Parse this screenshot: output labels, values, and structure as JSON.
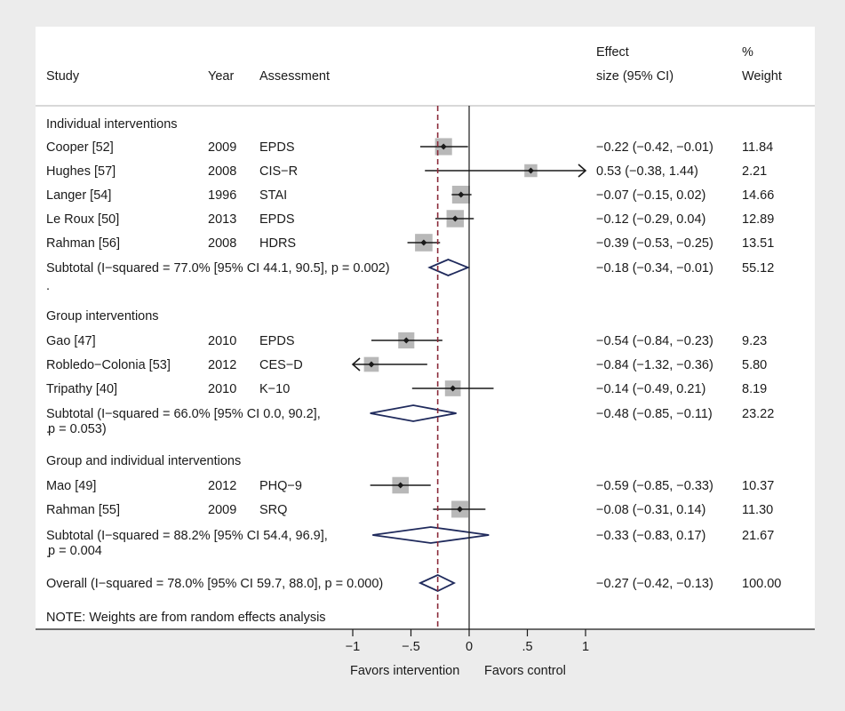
{
  "chart_data": {
    "type": "forest",
    "headers": {
      "study": "Study",
      "year": "Year",
      "assessment": "Assessment",
      "effect_line1": "Effect",
      "effect_line2": "size (95% CI)",
      "weight_line1": "%",
      "weight_line2": "Weight"
    },
    "xlim": [
      -1,
      1
    ],
    "xticks": [
      {
        "value": -1,
        "label": "−1"
      },
      {
        "value": -0.5,
        "label": "−.5"
      },
      {
        "value": 0,
        "label": "0"
      },
      {
        "value": 0.5,
        "label": ".5"
      },
      {
        "value": 1,
        "label": "1"
      }
    ],
    "null_line": 0,
    "overall_line": -0.27,
    "xlabel_left": "Favors intervention",
    "xlabel_right": "Favors control",
    "note": "NOTE: Weights are from random effects analysis",
    "rows": [
      {
        "kind": "group",
        "label": "Individual interventions"
      },
      {
        "kind": "study",
        "study": "Cooper [52]",
        "year": "2009",
        "assessment": "EPDS",
        "es": -0.22,
        "lo": -0.42,
        "hi": -0.01,
        "ci": "−0.22 (−0.42, −0.01)",
        "weight": "11.84",
        "w": 11.84
      },
      {
        "kind": "study",
        "study": "Hughes [57]",
        "year": "2008",
        "assessment": "CIS−R",
        "es": 0.53,
        "lo": -0.38,
        "hi": 1.44,
        "ci": "0.53 (−0.38, 1.44)",
        "weight": "2.21",
        "w": 2.21
      },
      {
        "kind": "study",
        "study": "Langer [54]",
        "year": "1996",
        "assessment": "STAI",
        "es": -0.07,
        "lo": -0.15,
        "hi": 0.02,
        "ci": "−0.07 (−0.15, 0.02)",
        "weight": "14.66",
        "w": 14.66
      },
      {
        "kind": "study",
        "study": "Le Roux [50]",
        "year": "2013",
        "assessment": "EPDS",
        "es": -0.12,
        "lo": -0.29,
        "hi": 0.04,
        "ci": "−0.12 (−0.29, 0.04)",
        "weight": "12.89",
        "w": 12.89
      },
      {
        "kind": "study",
        "study": "Rahman [56]",
        "year": "2008",
        "assessment": "HDRS",
        "es": -0.39,
        "lo": -0.53,
        "hi": -0.25,
        "ci": "−0.39 (−0.53, −0.25)",
        "weight": "13.51",
        "w": 13.51
      },
      {
        "kind": "subtotal",
        "label_lines": [
          "Subtotal (I−squared = 77.0% [95% CI 44.1, 90.5], p = 0.002)"
        ],
        "es": -0.18,
        "lo": -0.34,
        "hi": -0.01,
        "ci": "−0.18 (−0.34, −0.01)",
        "weight": "55.12"
      },
      {
        "kind": "spacer",
        "label": "."
      },
      {
        "kind": "group",
        "label": "Group interventions"
      },
      {
        "kind": "study",
        "study": "Gao [47]",
        "year": "2010",
        "assessment": "EPDS",
        "es": -0.54,
        "lo": -0.84,
        "hi": -0.23,
        "ci": "−0.54 (−0.84, −0.23)",
        "weight": "9.23",
        "w": 9.23
      },
      {
        "kind": "study",
        "study": "Robledo−Colonia [53]",
        "year": "2012",
        "assessment": "CES−D",
        "es": -0.84,
        "lo": -1.32,
        "hi": -0.36,
        "ci": "−0.84 (−1.32, −0.36)",
        "weight": "5.80",
        "w": 5.8
      },
      {
        "kind": "study",
        "study": "Tripathy [40]",
        "year": "2010",
        "assessment": "K−10",
        "es": -0.14,
        "lo": -0.49,
        "hi": 0.21,
        "ci": "−0.14 (−0.49, 0.21)",
        "weight": "8.19",
        "w": 8.19
      },
      {
        "kind": "subtotal",
        "label_lines": [
          "Subtotal (I−squared = 66.0% [95% CI 0.0, 90.2],",
          "p = 0.053)"
        ],
        "es": -0.48,
        "lo": -0.85,
        "hi": -0.11,
        "ci": "−0.48 (−0.85, −0.11)",
        "weight": "23.22"
      },
      {
        "kind": "spacer",
        "label": "."
      },
      {
        "kind": "group",
        "label": "Group and individual interventions"
      },
      {
        "kind": "study",
        "study": "Mao [49]",
        "year": "2012",
        "assessment": "PHQ−9",
        "es": -0.59,
        "lo": -0.85,
        "hi": -0.33,
        "ci": "−0.59 (−0.85, −0.33)",
        "weight": "10.37",
        "w": 10.37
      },
      {
        "kind": "study",
        "study": "Rahman [55]",
        "year": "2009",
        "assessment": "SRQ",
        "es": -0.08,
        "lo": -0.31,
        "hi": 0.14,
        "ci": "−0.08 (−0.31, 0.14)",
        "weight": "11.30",
        "w": 11.3
      },
      {
        "kind": "subtotal",
        "label_lines": [
          "Subtotal (I−squared = 88.2% [95% CI 54.4, 96.9],",
          "p = 0.004"
        ],
        "es": -0.33,
        "lo": -0.83,
        "hi": 0.17,
        "ci": "−0.33 (−0.83, 0.17)",
        "weight": "21.67"
      },
      {
        "kind": "spacer",
        "label": "."
      },
      {
        "kind": "overall",
        "label_lines": [
          "Overall (I−squared = 78.0% [95% CI 59.7, 88.0], p = 0.000)"
        ],
        "es": -0.27,
        "lo": -0.42,
        "hi": -0.13,
        "ci": "−0.27 (−0.42, −0.13)",
        "weight": "100.00"
      }
    ]
  },
  "colors": {
    "background": "#ececec",
    "panel": "#ffffff",
    "weight_box": "#b8b8b8",
    "diamond": "#1f2a5c",
    "overall_line": "#8b2b3a",
    "ink": "#1a1a1a"
  }
}
